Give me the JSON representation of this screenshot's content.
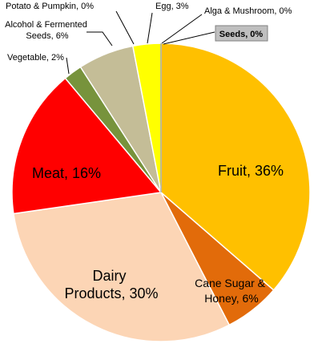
{
  "chart_data": {
    "type": "pie",
    "slices": [
      {
        "label": "Fruit",
        "value": 36,
        "color": "#FFC000",
        "text": "Fruit, 36%"
      },
      {
        "label": "Cane Sugar & Honey",
        "value": 6,
        "color": "#E26B0A",
        "text_lines": [
          "Cane Sugar &",
          "Honey, 6%"
        ]
      },
      {
        "label": "Dairy Products",
        "value": 30,
        "color": "#FCD5B5",
        "text_lines": [
          "Dairy",
          "Products, 30%"
        ]
      },
      {
        "label": "Meat",
        "value": 16,
        "color": "#FF0000",
        "text": "Meat, 16%"
      },
      {
        "label": "Vegetable",
        "value": 2,
        "color": "#77933C",
        "text": "Vegetable, 2%"
      },
      {
        "label": "Alcohol & Fermented Seeds",
        "value": 6,
        "color": "#C4BD97",
        "text_lines": [
          "Alcohol & Fermented",
          "Seeds, 6%"
        ]
      },
      {
        "label": "Potato & Pumpkin",
        "value": 0,
        "color": "#D9D9D9",
        "text": "Potato & Pumpkin, 0%"
      },
      {
        "label": "Egg",
        "value": 3,
        "color": "#FFFF00",
        "text": "Egg, 3%"
      },
      {
        "label": "Alga & Mushroom",
        "value": 0,
        "color": "#A6A6A6",
        "text": "Alga & Mushroom, 0%"
      },
      {
        "label": "Seeds",
        "value": 0,
        "color": "#808080",
        "text": "Seeds, 0%"
      }
    ]
  }
}
